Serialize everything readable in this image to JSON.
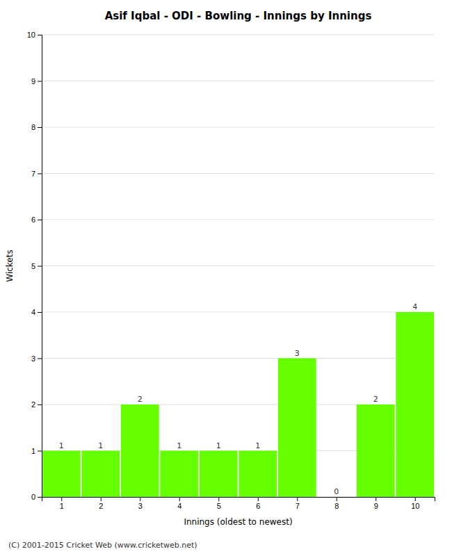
{
  "chart_data": {
    "type": "bar",
    "title": "Asif Iqbal - ODI - Bowling - Innings by Innings",
    "x_label": "Innings (oldest to newest)",
    "y_label": "Wickets",
    "x": [
      1,
      2,
      3,
      4,
      5,
      6,
      7,
      8,
      9,
      10
    ],
    "values": [
      1,
      1,
      2,
      1,
      1,
      1,
      3,
      0,
      2,
      4
    ],
    "color": "#66ff00",
    "xlim": [
      0.5,
      10.5
    ],
    "xticks": [
      1,
      2,
      3,
      4,
      5,
      6,
      7,
      8,
      9,
      10
    ],
    "ylim": [
      0,
      10
    ],
    "yticks": [
      0,
      1,
      2,
      3,
      4,
      5,
      6,
      7,
      8,
      9,
      10
    ],
    "grid": true,
    "data_labels": true,
    "annotations": [
      "(C) 2001-2015 Cricket Web (www.cricketweb.net)"
    ]
  }
}
